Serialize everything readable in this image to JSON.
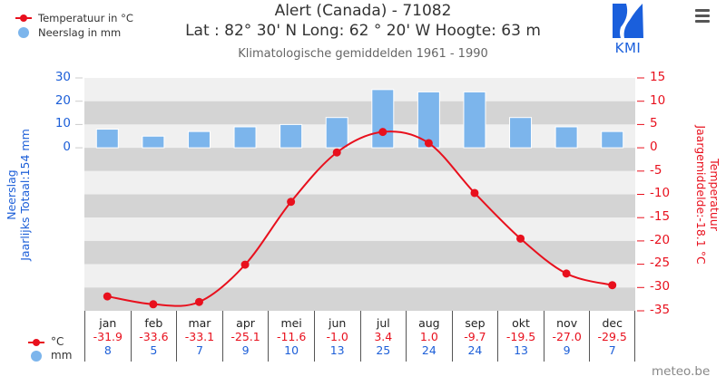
{
  "legend": {
    "temperature_label": "Temperatuur in °C",
    "precipitation_label": "Neerslag in mm"
  },
  "header": {
    "title": "Alert (Canada) - 71082",
    "subtitle": "Lat : 82° 30' N Long: 62 ° 20' W Hoogte: 63 m",
    "period": "Klimatologische gemiddelden 1961 - 1990",
    "logo_text": "KMI",
    "menu_icon": "hamburger-menu-icon"
  },
  "axes": {
    "left_title_line1": "Neerslag",
    "left_title_line2": "Jaarlijks Totaal:154 mm",
    "right_title_line1": "Temperatuur",
    "right_title_line2": "Jaargemiddelde:-18.1 °C",
    "left_ticks": [
      "30",
      "20",
      "10",
      "0"
    ],
    "right_ticks": [
      "15",
      "10",
      "5",
      "0",
      "-5",
      "-10",
      "-15",
      "-20",
      "-25",
      "-30",
      "-35"
    ]
  },
  "table": {
    "temp_unit": "°C",
    "precip_unit": "mm"
  },
  "credit": "meteo.be",
  "colors": {
    "temperature": "#e8101d",
    "precipitation": "#7cb5ec",
    "left_axis": "#1d5fd8",
    "band_dark": "#d4d4d4",
    "band_light": "#f0f0f0"
  },
  "chart_data": {
    "type": "bar+line",
    "title": "Alert (Canada) - 71082",
    "subtitle": "Klimatologische gemiddelden 1961 - 1990",
    "categories": [
      "jan",
      "feb",
      "mar",
      "apr",
      "mei",
      "jun",
      "jul",
      "aug",
      "sep",
      "okt",
      "nov",
      "dec"
    ],
    "series": [
      {
        "name": "Temperatuur in °C",
        "type": "line",
        "axis": "right",
        "values": [
          -31.9,
          -33.6,
          -33.1,
          -25.1,
          -11.6,
          -1.0,
          3.4,
          1.0,
          -9.7,
          -19.5,
          -27.0,
          -29.5
        ]
      },
      {
        "name": "Neerslag in mm",
        "type": "bar",
        "axis": "left",
        "values": [
          8,
          5,
          7,
          9,
          10,
          13,
          25,
          24,
          24,
          13,
          9,
          7
        ]
      }
    ],
    "ylabel_left": "Neerslag — Jaarlijks Totaal:154 mm",
    "ylabel_right": "Temperatuur — Jaargemiddelde:-18.1 °C",
    "ylim_left": [
      0,
      30
    ],
    "ylim_right": [
      -35,
      15
    ],
    "grid": "alternating bands",
    "legend_position": "top-left"
  }
}
